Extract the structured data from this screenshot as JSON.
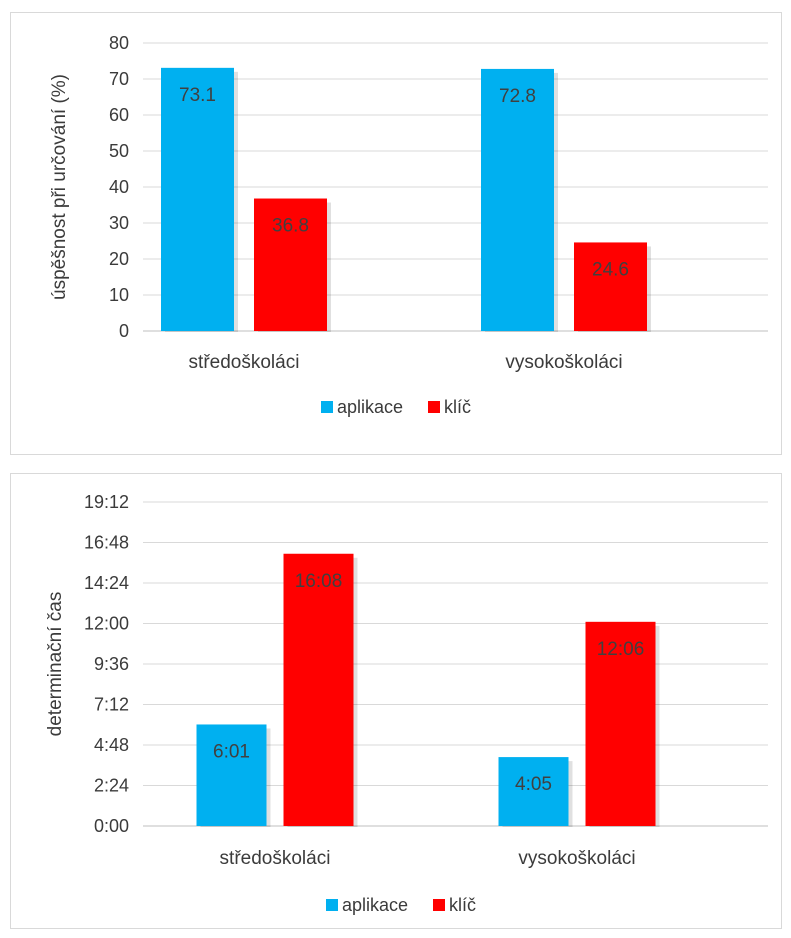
{
  "colors": {
    "aplikace": "#00b0f0",
    "klic": "#ff0000",
    "grid": "#d9d9d9",
    "axis": "#bfbfbf",
    "text": "#3b3b3b"
  },
  "chart_data": [
    {
      "type": "bar",
      "categories": [
        "středoškoláci",
        "vysokoškoláci"
      ],
      "series": [
        {
          "name": "aplikace",
          "values": [
            73.1,
            72.8
          ],
          "labels": [
            "73.1",
            "72.8"
          ]
        },
        {
          "name": "klíč",
          "values": [
            36.8,
            24.6
          ],
          "labels": [
            "36.8",
            "24.6"
          ]
        }
      ],
      "ylabel": "úspěšnost při určování (%)",
      "ylim": [
        0,
        80
      ],
      "yticks": [
        0,
        10,
        20,
        30,
        40,
        50,
        60,
        70,
        80
      ],
      "ytick_labels": [
        "0",
        "10",
        "20",
        "30",
        "40",
        "50",
        "60",
        "70",
        "80"
      ],
      "grid": true,
      "legend": "bottom"
    },
    {
      "type": "bar",
      "categories": [
        "středoškoláci",
        "vysokoškoláci"
      ],
      "series": [
        {
          "name": "aplikace",
          "values": [
            6.0167,
            4.0833
          ],
          "labels": [
            "6:01",
            "4:05"
          ]
        },
        {
          "name": "klíč",
          "values": [
            16.1333,
            12.1
          ],
          "labels": [
            "16:08",
            "12:06"
          ]
        }
      ],
      "ylabel": "determinační čas",
      "ylim": [
        0,
        19.2
      ],
      "yticks": [
        0,
        2.4,
        4.8,
        7.2,
        9.6,
        12,
        14.4,
        16.8,
        19.2
      ],
      "ytick_labels": [
        "0:00",
        "2:24",
        "4:48",
        "7:12",
        "9:36",
        "12:00",
        "14:24",
        "16:48",
        "19:12"
      ],
      "grid": true,
      "legend": "bottom"
    }
  ]
}
